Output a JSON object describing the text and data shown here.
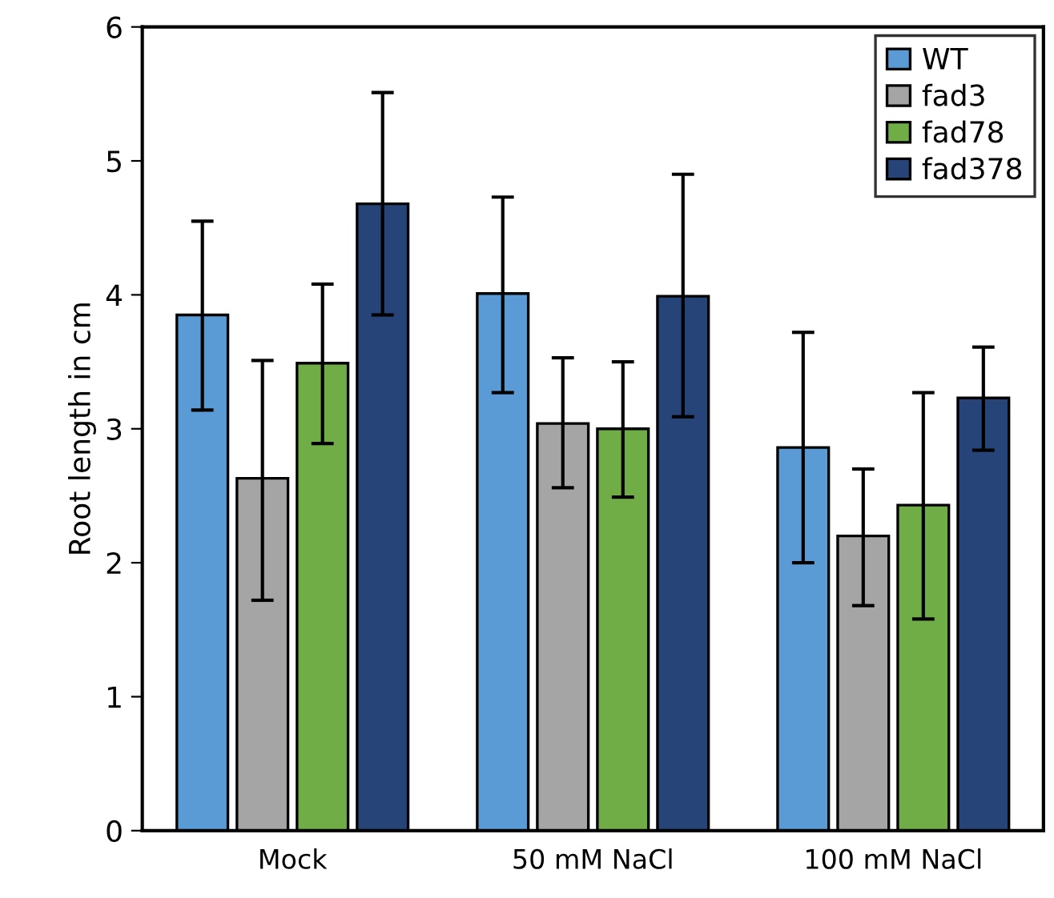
{
  "chart_data": {
    "type": "bar",
    "ylabel": "Root length in cm",
    "categories": [
      "Mock",
      "50 mM NaCl",
      "100 mM NaCl"
    ],
    "ylim": [
      0,
      6
    ],
    "yticks": [
      0,
      1,
      2,
      3,
      4,
      5,
      6
    ],
    "grid": false,
    "legend": "top right",
    "series": [
      {
        "name": "WT",
        "color": "#5b9bd5",
        "values": [
          3.85,
          4.01,
          2.86
        ],
        "errors": [
          [
            3.14,
            4.55
          ],
          [
            3.27,
            4.73
          ],
          [
            2.0,
            3.72
          ]
        ]
      },
      {
        "name": "fad3",
        "color": "#a5a5a5",
        "values": [
          2.63,
          3.04,
          2.2
        ],
        "errors": [
          [
            1.72,
            3.51
          ],
          [
            2.56,
            3.53
          ],
          [
            1.68,
            2.7
          ]
        ]
      },
      {
        "name": "fad78",
        "color": "#70ad47",
        "values": [
          3.49,
          3.0,
          2.43
        ],
        "errors": [
          [
            2.89,
            4.08
          ],
          [
            2.49,
            3.5
          ],
          [
            1.58,
            3.27
          ]
        ]
      },
      {
        "name": "fad378",
        "color": "#264478",
        "values": [
          4.68,
          3.99,
          3.23
        ],
        "errors": [
          [
            3.85,
            5.51
          ],
          [
            3.09,
            4.9
          ],
          [
            2.84,
            3.61
          ]
        ]
      }
    ]
  }
}
